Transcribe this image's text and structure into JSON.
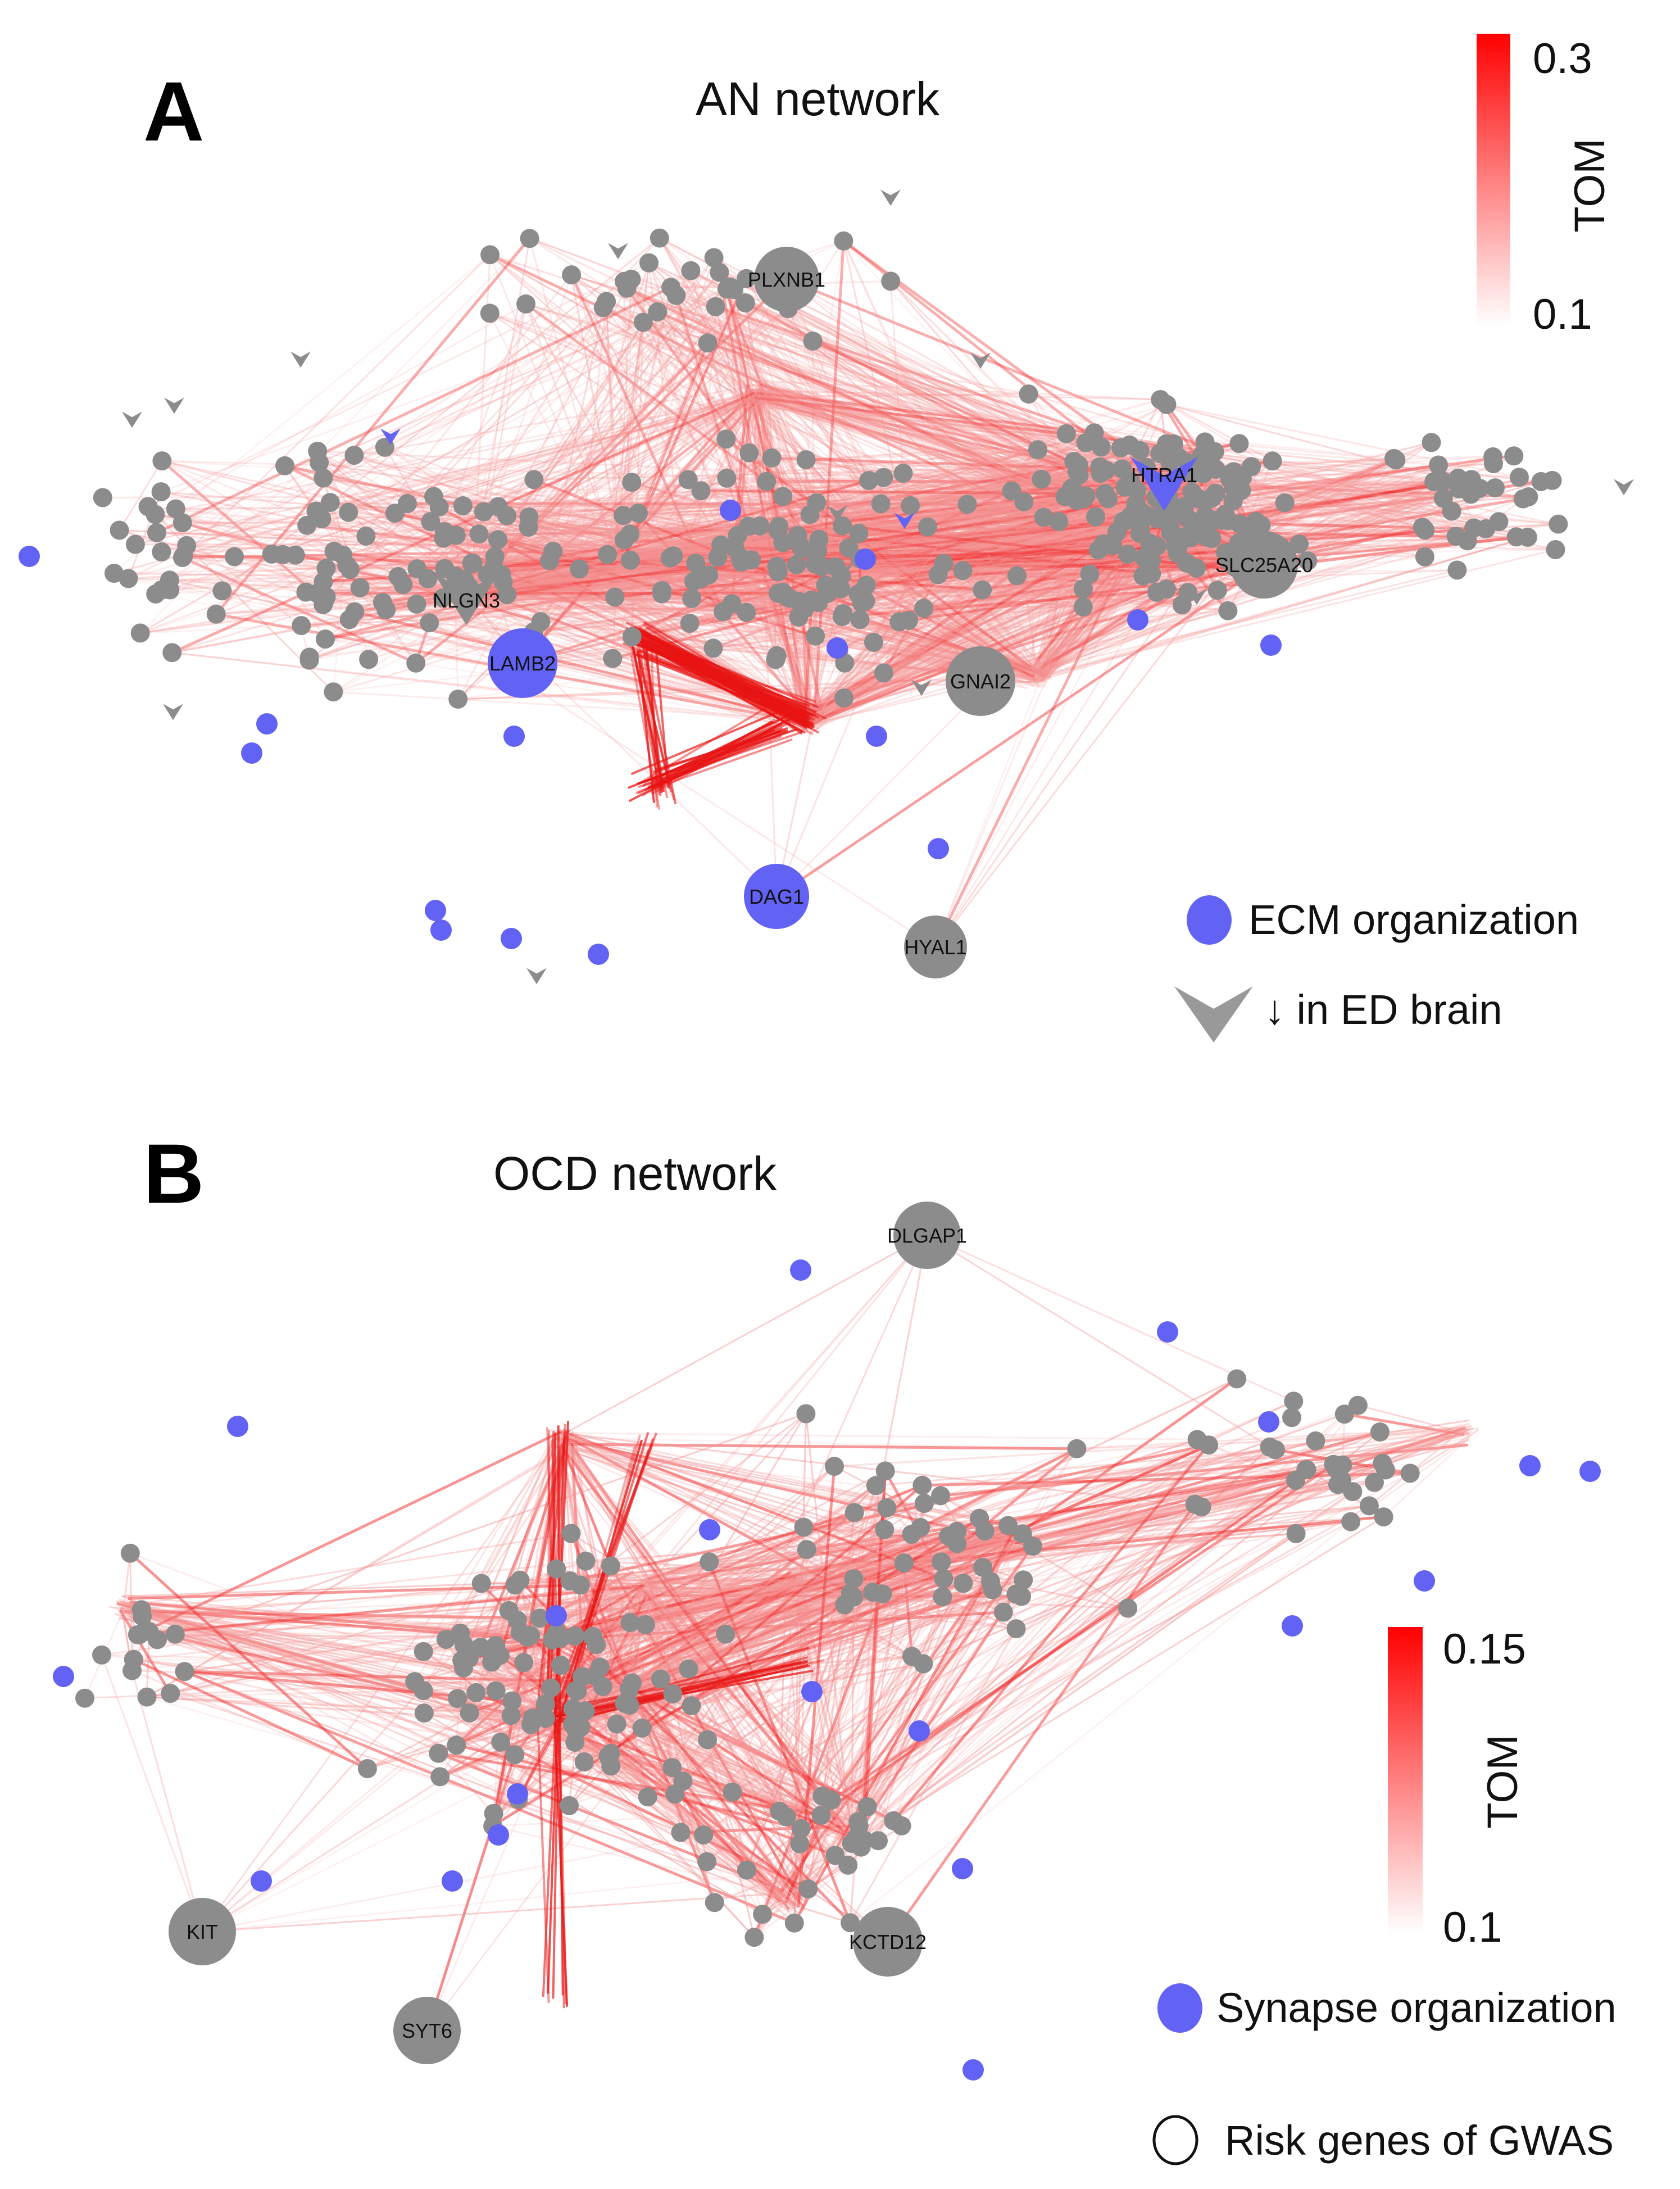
{
  "colors": {
    "gene": "#8c8c8c",
    "highlight": "#6262f5",
    "edge_high": "#ff0000",
    "edge_low": "#ffffff"
  },
  "panel_a": {
    "letter": "A",
    "title": "AN network",
    "scale": {
      "title": "TOM",
      "max_label": "0.3",
      "min_label": "0.1"
    },
    "legend": {
      "highlight_label": "ECM organization",
      "arrow_label": "↓ in ED brain"
    },
    "hub_genes": [
      {
        "label": "PLXNB1",
        "category": "gene"
      },
      {
        "label": "HTRA1",
        "category": "highlight-arrow"
      },
      {
        "label": "NLGN3",
        "category": "gene-arrow"
      },
      {
        "label": "SLC25A20",
        "category": "gene"
      },
      {
        "label": "LAMB2",
        "category": "highlight"
      },
      {
        "label": "GNAI2",
        "category": "gene"
      },
      {
        "label": "DAG1",
        "category": "highlight"
      },
      {
        "label": "HYAL1",
        "category": "gene"
      }
    ]
  },
  "panel_b": {
    "letter": "B",
    "title": "OCD network",
    "scale": {
      "title": "TOM",
      "max_label": "0.15",
      "min_label": "0.1"
    },
    "legend": {
      "highlight_label": "Synapse organization",
      "risk_label": "Risk genes of GWAS"
    },
    "hub_genes": [
      {
        "label": "DLGAP1",
        "category": "gene"
      },
      {
        "label": "KIT",
        "category": "gene"
      },
      {
        "label": "SYT6",
        "category": "gene"
      },
      {
        "label": "KCTD12",
        "category": "gene"
      }
    ]
  }
}
